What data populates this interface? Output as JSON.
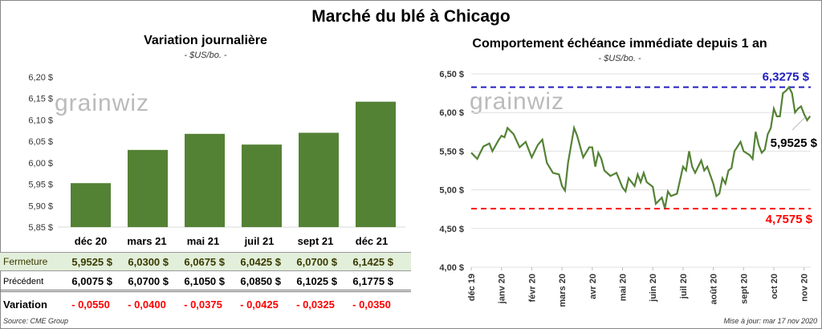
{
  "title": "Marché du blé à Chicago",
  "left": {
    "subtitle": "Variation journalière",
    "unit": "- $US/bo. -",
    "watermark": "grainwiz"
  },
  "right": {
    "subtitle": "Comportement  échéance immédiate depuis 1 an",
    "unit": "- $US/bo. -",
    "watermark": "grainwiz"
  },
  "table": {
    "columns": [
      "déc 20",
      "mars 21",
      "mai 21",
      "juil 21",
      "sept 21",
      "déc 21"
    ],
    "rows": [
      {
        "label": "Fermeture",
        "values": [
          "5,9525  $",
          "6,0300  $",
          "6,0675  $",
          "6,0425  $",
          "6,0700  $",
          "6,1425  $"
        ]
      },
      {
        "label": "Précédent",
        "values": [
          "6,0075  $",
          "6,0700  $",
          "6,1050  $",
          "6,0850  $",
          "6,1025  $",
          "6,1775  $"
        ]
      },
      {
        "label": "Variation",
        "values": [
          "- 0,0550",
          "- 0,0400",
          "- 0,0375",
          "- 0,0425",
          "- 0,0325",
          "- 0,0350"
        ]
      }
    ]
  },
  "source": "Source: CME Group",
  "updated": "Mise à jour: mar 17 nov 2020",
  "colors": {
    "bar": "#548235",
    "line": "#548235",
    "high": "#2020c0",
    "low": "#ff0000",
    "fermeture_bg": "#e2efda"
  },
  "chart_data": [
    {
      "type": "bar",
      "title": "Variation journalière",
      "ylabel": "$US/bo.",
      "ylim": [
        5.85,
        6.2
      ],
      "yticks": [
        "5,85 $",
        "5,90 $",
        "5,95 $",
        "6,00 $",
        "6,05 $",
        "6,10 $",
        "6,15 $",
        "6,20 $"
      ],
      "categories": [
        "déc 20",
        "mars 21",
        "mai 21",
        "juil 21",
        "sept 21",
        "déc 21"
      ],
      "values": [
        5.9525,
        6.03,
        6.0675,
        6.0425,
        6.07,
        6.1425
      ]
    },
    {
      "type": "line",
      "title": "Comportement  échéance immédiate depuis 1 an",
      "ylabel": "$US/bo.",
      "ylim": [
        4.0,
        6.5
      ],
      "yticks": [
        "4,00 $",
        "4,50 $",
        "5,00 $",
        "5,50 $",
        "6,00 $",
        "6,50 $"
      ],
      "xticks": [
        "déc 19",
        "janv 20",
        "févr 20",
        "mars 20",
        "avr 20",
        "mai 20",
        "juin 20",
        "juil 20",
        "août 20",
        "sept 20",
        "oct 20",
        "nov 20"
      ],
      "high": {
        "value": 6.3275,
        "label": "6,3275  $"
      },
      "low": {
        "value": 4.7575,
        "label": "4,7575  $"
      },
      "last": {
        "value": 5.9525,
        "label": "5,9525 $"
      },
      "series": [
        {
          "name": "blé",
          "x": [
            0,
            0.2,
            0.4,
            0.6,
            0.7,
            0.9,
            1.0,
            1.1,
            1.2,
            1.4,
            1.6,
            1.8,
            2.0,
            2.2,
            2.35,
            2.5,
            2.7,
            2.9,
            3.0,
            3.1,
            3.2,
            3.4,
            3.5,
            3.7,
            3.9,
            4.0,
            4.1,
            4.2,
            4.3,
            4.4,
            4.6,
            4.8,
            5.0,
            5.1,
            5.2,
            5.4,
            5.5,
            5.6,
            5.7,
            5.8,
            6.0,
            6.1,
            6.3,
            6.4,
            6.5,
            6.6,
            6.8,
            7.0,
            7.1,
            7.2,
            7.3,
            7.4,
            7.6,
            7.7,
            7.8,
            8.0,
            8.1,
            8.2,
            8.3,
            8.4,
            8.5,
            8.6,
            8.7,
            8.9,
            9.0,
            9.2,
            9.3,
            9.4,
            9.5,
            9.6,
            9.7,
            9.8,
            9.9,
            10.0,
            10.1,
            10.2,
            10.3,
            10.4,
            10.5,
            10.6,
            10.7,
            10.8,
            10.9,
            11.0,
            11.1,
            11.2
          ],
          "y": [
            5.48,
            5.4,
            5.56,
            5.6,
            5.5,
            5.64,
            5.7,
            5.68,
            5.8,
            5.72,
            5.55,
            5.62,
            5.42,
            5.58,
            5.65,
            5.35,
            5.22,
            5.2,
            5.05,
            4.99,
            5.35,
            5.8,
            5.7,
            5.42,
            5.55,
            5.55,
            5.3,
            5.48,
            5.4,
            5.25,
            5.18,
            5.22,
            5.03,
            4.98,
            5.15,
            5.05,
            5.2,
            5.1,
            5.22,
            5.1,
            5.04,
            4.82,
            4.9,
            4.76,
            4.98,
            4.92,
            4.95,
            5.3,
            5.25,
            5.5,
            5.3,
            5.22,
            5.38,
            5.25,
            5.3,
            5.08,
            4.92,
            4.95,
            5.15,
            5.08,
            5.25,
            5.28,
            5.5,
            5.62,
            5.5,
            5.45,
            5.4,
            5.75,
            5.58,
            5.48,
            5.52,
            5.72,
            5.8,
            6.05,
            5.95,
            5.95,
            6.25,
            6.28,
            6.3275,
            6.25,
            6.0,
            6.05,
            6.08,
            5.98,
            5.9,
            5.9525
          ]
        }
      ]
    }
  ]
}
